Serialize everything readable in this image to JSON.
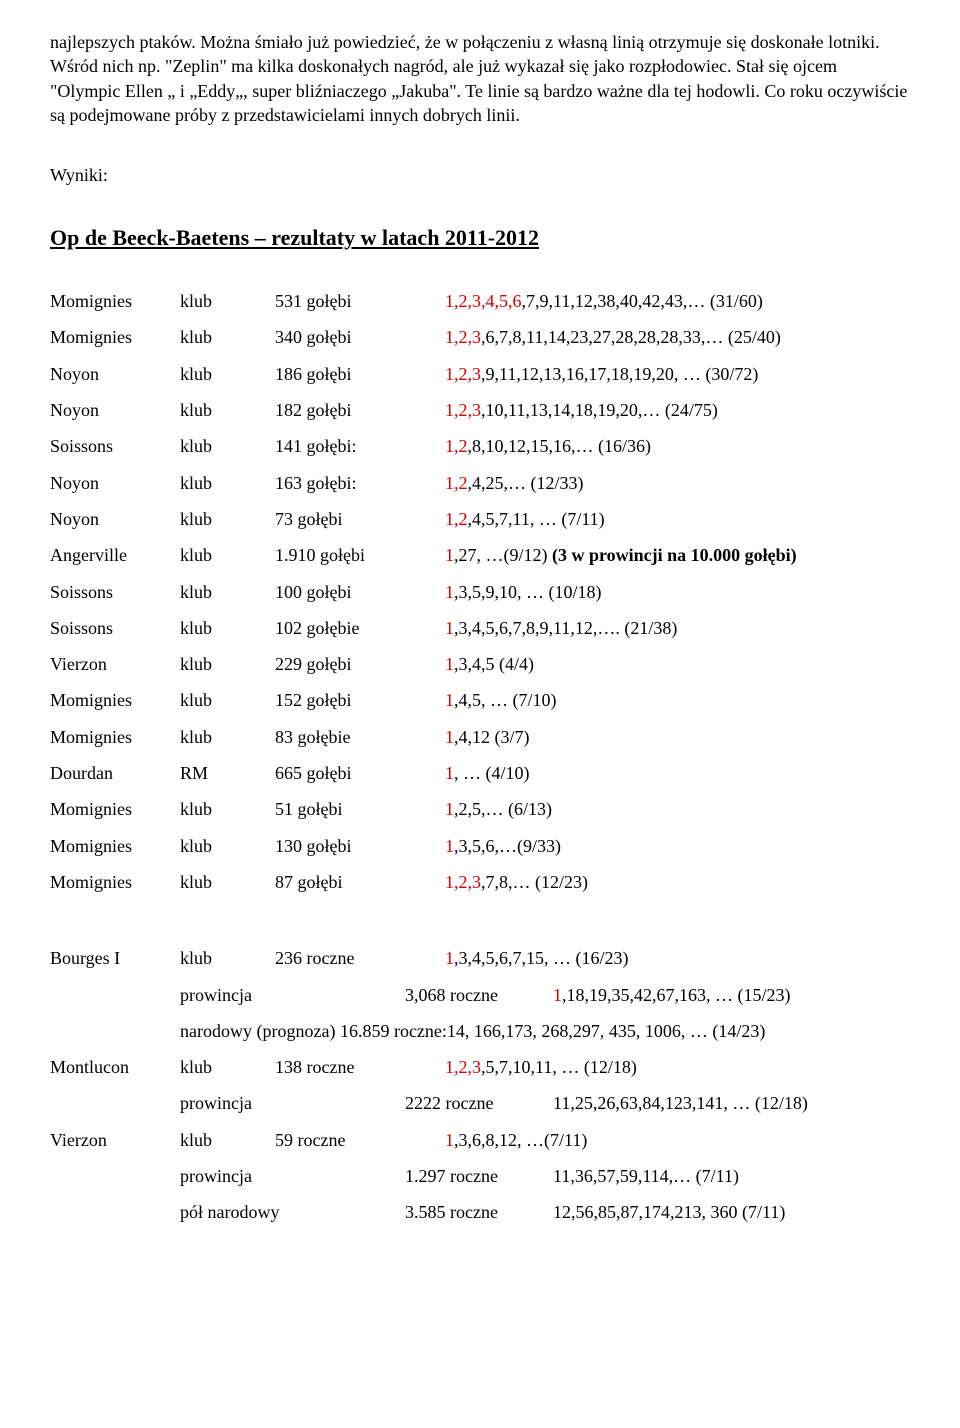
{
  "intro": "najlepszych ptaków. Można śmiało już powiedzieć, że w połączeniu z własną linią otrzymuje się doskonałe lotniki. Wśród nich np. \"Zeplin\" ma kilka doskonałych nagród, ale już wykazał się jako rozpłodowiec. Stał się ojcem \"Olympic Ellen „ i „Eddy„, super bliźniaczego „Jakuba\". Te linie są bardzo ważne dla tej hodowli. Co roku oczywiście są podejmowane próby z przedstawicielami innych dobrych linii.",
  "wyniki_label": "Wyniki:",
  "section_title": "Op de Beeck-Baetens – rezultaty w latach 2011-2012",
  "rows": [
    {
      "c1": "Momignies",
      "c2": "klub",
      "c3": "531 gołębi",
      "red": "1,2,3,4,5,6",
      "tail": ",7,9,11,12,38,40,42,43,… (31/60)"
    },
    {
      "c1": "Momignies",
      "c2": "klub",
      "c3": "340 gołębi",
      "red": "1,2,3",
      "tail": ",6,7,8,11,14,23,27,28,28,28,33,… (25/40)"
    },
    {
      "c1": "Noyon",
      "c2": "klub",
      "c3": "186 gołębi",
      "red": "1,2,3",
      "tail": ",9,11,12,13,16,17,18,19,20, … (30/72)"
    },
    {
      "c1": "Noyon",
      "c2": "klub",
      "c3": "182 gołębi",
      "red": "1,2,3",
      "tail": ",10,11,13,14,18,19,20,…  (24/75)"
    },
    {
      "c1": "Soissons",
      "c2": "klub",
      "c3": "141 gołębi:",
      "red": "1,2",
      "tail": ",8,10,12,15,16,…  (16/36)"
    },
    {
      "c1": "Noyon",
      "c2": "klub",
      "c3": "163 gołębi:",
      "red": "1,2",
      "tail": ",4,25,… (12/33)"
    },
    {
      "c1": "Noyon",
      "c2": "klub",
      "c3": "73 gołębi",
      "red": "1,2",
      "tail": ",4,5,7,11, … (7/11)"
    },
    {
      "c1": "Angerville",
      "c2": "klub",
      "c3": "1.910 gołębi",
      "red": "1",
      "tail": ",27, …(9/12)  ",
      "bold": "(3 w prowincji na  10.000 gołębi)"
    },
    {
      "c1": "Soissons",
      "c2": "klub",
      "c3": "100 gołębi",
      "red": "1",
      "tail": ",3,5,9,10, … (10/18)"
    },
    {
      "c1": "Soissons",
      "c2": "klub",
      "c3": "102 gołębie",
      "red": "1",
      "tail": ",3,4,5,6,7,8,9,11,12,….  (21/38)"
    },
    {
      "c1": "Vierzon",
      "c2": "klub",
      "c3": "229 gołębi",
      "red": "1",
      "tail": ",3,4,5 (4/4)"
    },
    {
      "c1": "Momignies",
      "c2": "klub",
      "c3": "152 gołębi",
      "red": "1",
      "tail": ",4,5, … (7/10)"
    },
    {
      "c1": "Momignies",
      "c2": "klub",
      "c3": "83 gołębie",
      "red": "1",
      "tail": ",4,12 (3/7)"
    },
    {
      "c1": "Dourdan",
      "c2": "RM",
      "c3": "665 gołębi",
      "red": "1",
      "tail": ", … (4/10)"
    },
    {
      "c1": "Momignies",
      "c2": "klub",
      "c3": "51 gołębi",
      "red": "1",
      "tail": ",2,5,… (6/13)"
    },
    {
      "c1": "Momignies",
      "c2": "klub",
      "c3": "130 gołębi",
      "red": "1",
      "tail": ",3,5,6,…(9/33)"
    },
    {
      "c1": "Momignies",
      "c2": "klub",
      "c3": "87 gołębi",
      "red": "1,2,3",
      "tail": ",7,8,… (12/23)"
    }
  ],
  "block2": [
    {
      "c1": "Bourges  I",
      "c2": "klub",
      "c3": "236 roczne",
      "red": "1",
      "tail": ",3,4,5,6,7,15, … (16/23)",
      "sub": [
        {
          "l": "prowincja",
          "m": "3,068 roczne",
          "red": "1",
          "t": ",18,19,35,42,67,163, … (15/23)"
        },
        {
          "l": "narodowy (prognoza)  16.859 roczne:14, 166,173, 268,297, 435, 1006, … (14/23)",
          "full": true
        }
      ]
    },
    {
      "c1": "Montlucon",
      "c2": "klub",
      "c3": "138 roczne",
      "red": "1,2,3",
      "tail": ",5,7,10,11, … (12/18)",
      "sub": [
        {
          "l": "prowincja",
          "m": "2222 roczne",
          "t": "11,25,26,63,84,123,141, … (12/18)"
        }
      ]
    },
    {
      "c1": "Vierzon",
      "c2": "klub",
      "c3": "59 roczne",
      "red": "1",
      "tail": ",3,6,8,12, …(7/11)",
      "sub": [
        {
          "l": "prowincja",
          "m": "1.297 roczne",
          "t": "11,36,57,59,114,… (7/11)"
        },
        {
          "l": "pół narodowy",
          "m": "3.585 roczne",
          "t": "12,56,85,87,174,213, 360 (7/11)"
        }
      ]
    }
  ]
}
